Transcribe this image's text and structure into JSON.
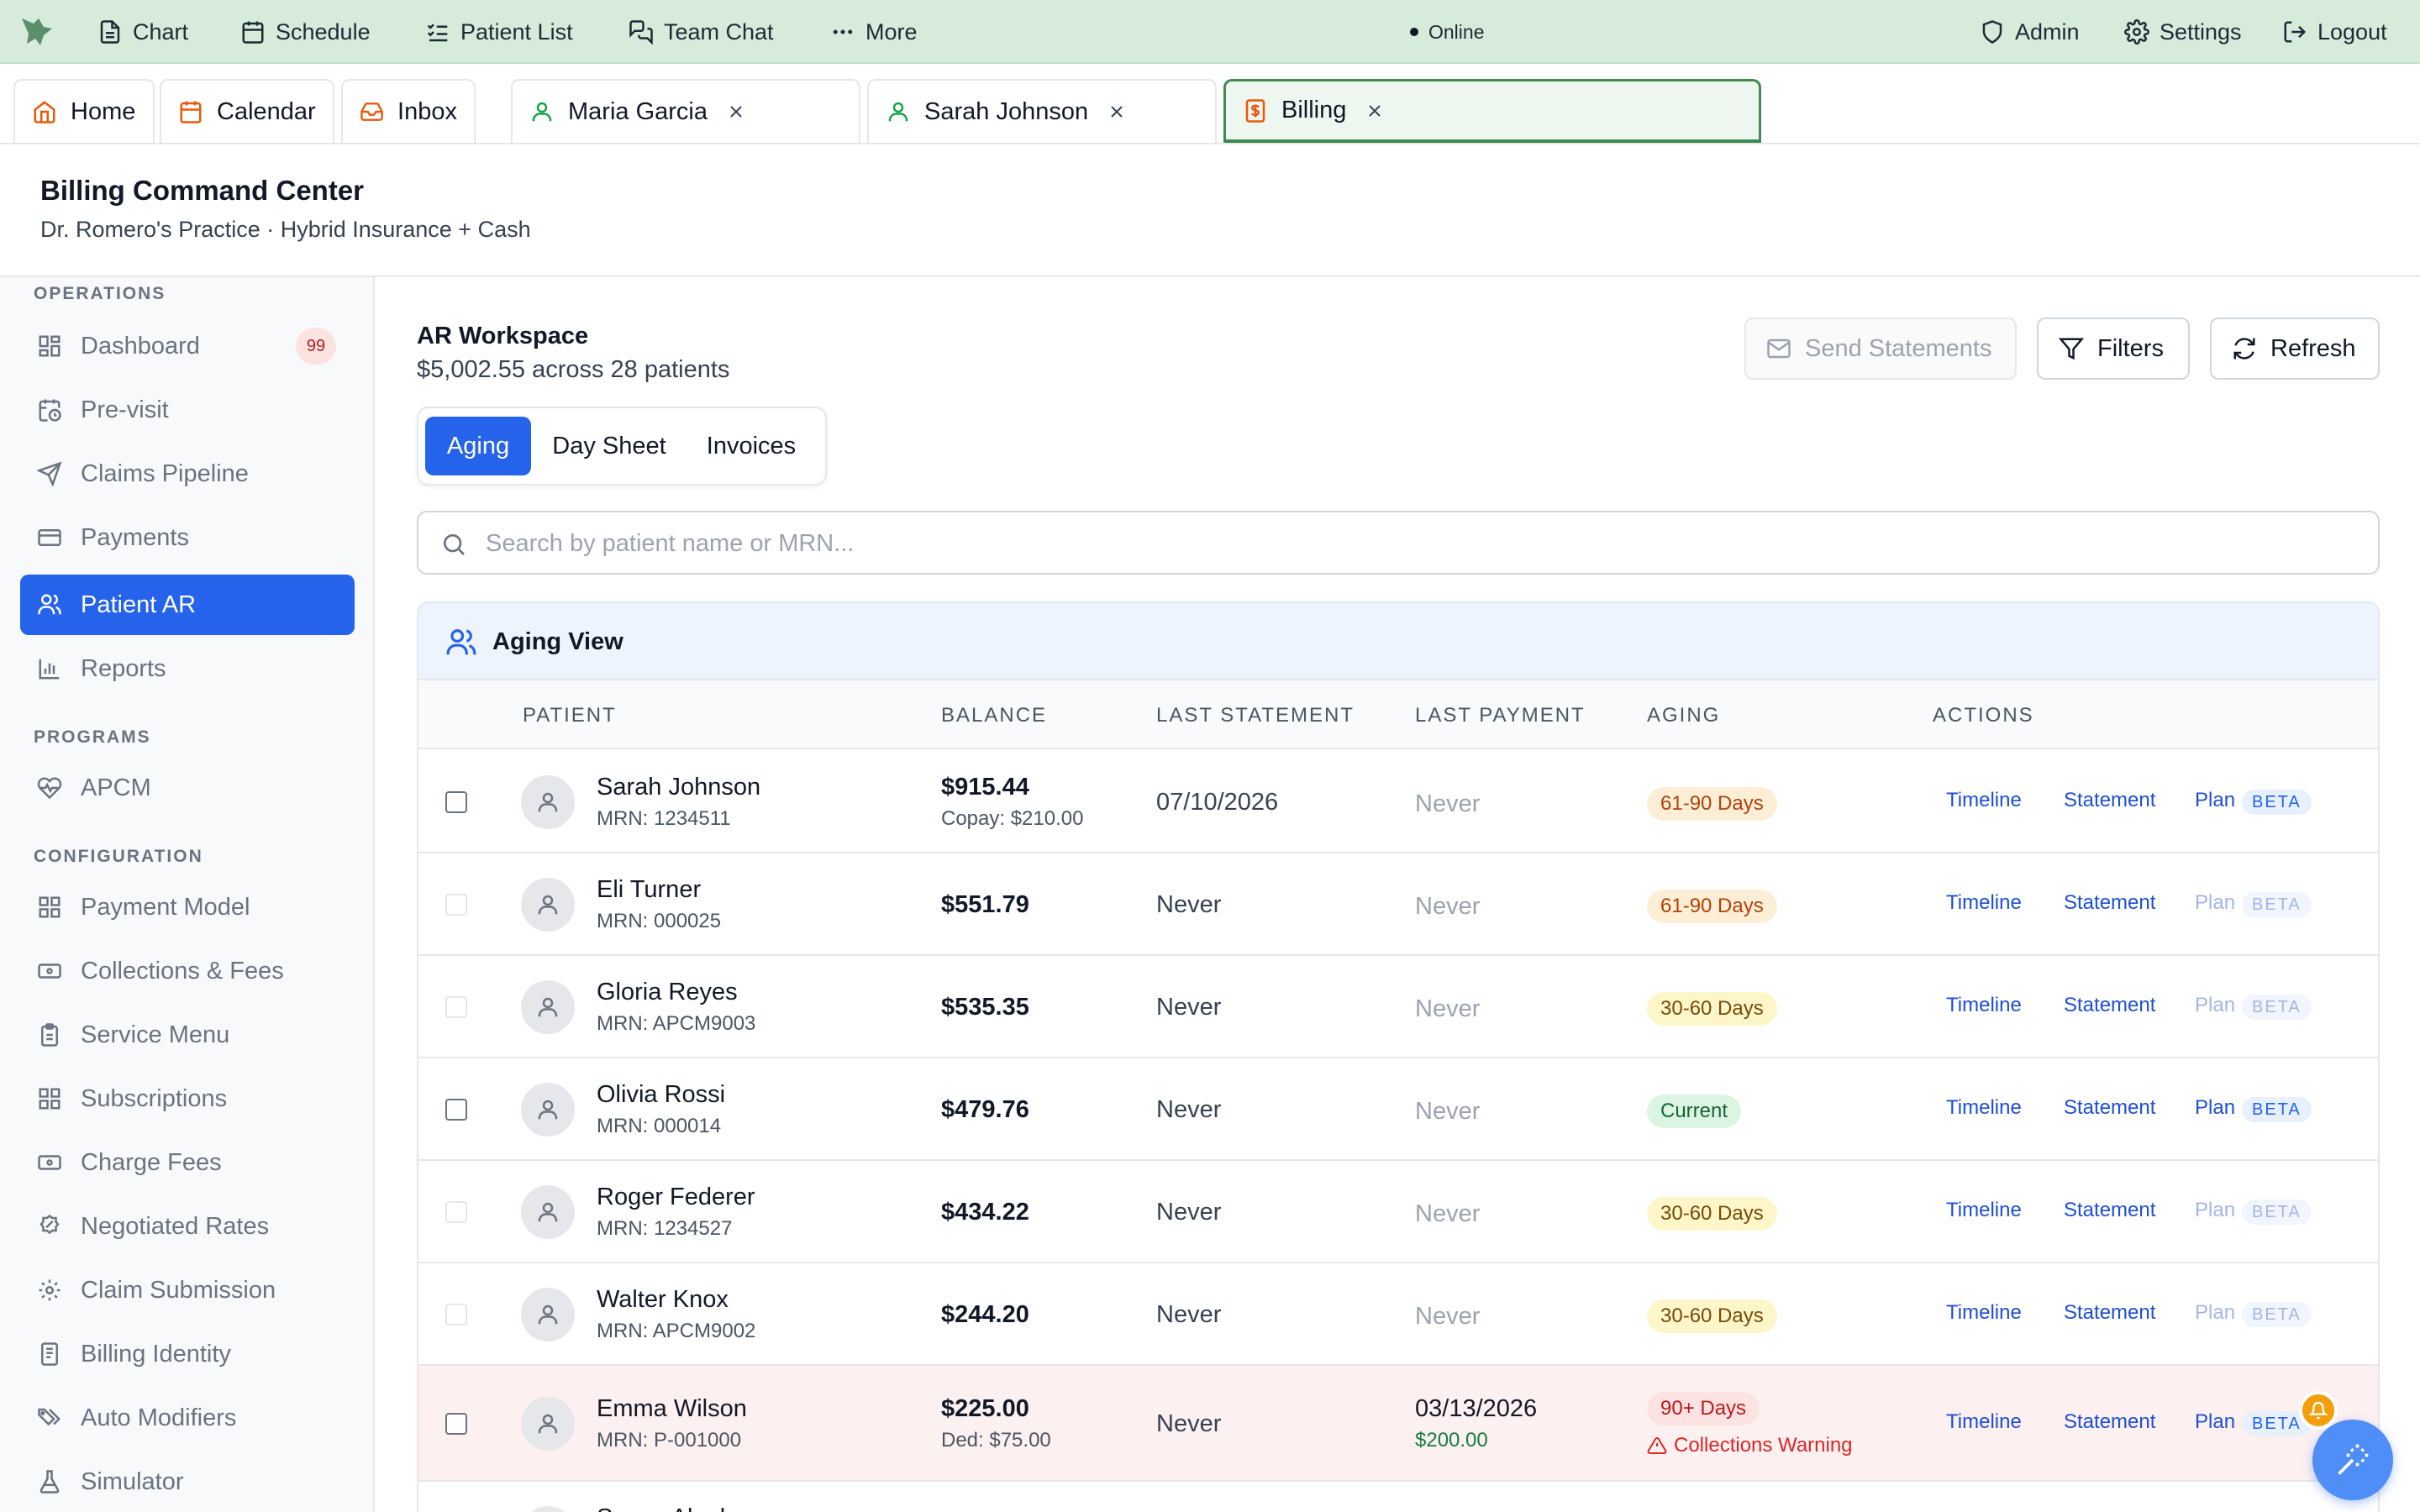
{
  "topnav": {
    "items": [
      {
        "label": "Chart",
        "icon": "document-icon"
      },
      {
        "label": "Schedule",
        "icon": "calendar-icon"
      },
      {
        "label": "Patient List",
        "icon": "list-check-icon"
      },
      {
        "label": "Team Chat",
        "icon": "chat-icon"
      },
      {
        "label": "More",
        "icon": "ellipsis-icon"
      }
    ],
    "status": "Online",
    "right": [
      {
        "label": "Admin",
        "icon": "shield-icon"
      },
      {
        "label": "Settings",
        "icon": "gear-icon"
      },
      {
        "label": "Logout",
        "icon": "logout-icon"
      }
    ]
  },
  "tabs": {
    "fixed": [
      {
        "label": "Home",
        "icon": "home-icon"
      },
      {
        "label": "Calendar",
        "icon": "calendar-icon"
      },
      {
        "label": "Inbox",
        "icon": "inbox-icon"
      }
    ],
    "open": [
      {
        "label": "Maria Garcia",
        "icon": "user-icon"
      },
      {
        "label": "Sarah Johnson",
        "icon": "user-icon"
      },
      {
        "label": "Billing",
        "icon": "billing-icon",
        "active": true
      }
    ]
  },
  "header": {
    "title": "Billing Command Center",
    "subtitle": "Dr. Romero's Practice · Hybrid Insurance + Cash"
  },
  "sidebar": {
    "sections": [
      {
        "title": "OPERATIONS",
        "items": [
          {
            "label": "Dashboard",
            "icon": "dashboard-icon",
            "badge": "99"
          },
          {
            "label": "Pre-visit",
            "icon": "calendar-clock-icon"
          },
          {
            "label": "Claims Pipeline",
            "icon": "send-icon"
          },
          {
            "label": "Payments",
            "icon": "credit-card-icon"
          },
          {
            "label": "Patient AR",
            "icon": "users-icon",
            "active": true
          },
          {
            "label": "Reports",
            "icon": "bar-chart-icon"
          }
        ]
      },
      {
        "title": "PROGRAMS",
        "items": [
          {
            "label": "APCM",
            "icon": "heart-pulse-icon"
          }
        ]
      },
      {
        "title": "CONFIGURATION",
        "items": [
          {
            "label": "Payment Model",
            "icon": "blocks-icon"
          },
          {
            "label": "Collections & Fees",
            "icon": "banknote-icon"
          },
          {
            "label": "Service Menu",
            "icon": "clipboard-icon"
          },
          {
            "label": "Subscriptions",
            "icon": "blocks-icon"
          },
          {
            "label": "Charge Fees",
            "icon": "banknote-icon"
          },
          {
            "label": "Negotiated Rates",
            "icon": "badge-percent-icon"
          },
          {
            "label": "Claim Submission",
            "icon": "gear-icon"
          },
          {
            "label": "Billing Identity",
            "icon": "id-document-icon"
          },
          {
            "label": "Auto Modifiers",
            "icon": "tags-icon"
          },
          {
            "label": "Simulator",
            "icon": "flask-icon"
          }
        ]
      }
    ]
  },
  "workspace": {
    "title": "AR Workspace",
    "summary": "$5,002.55 across 28 patients",
    "buttons": {
      "send": "Send Statements",
      "filters": "Filters",
      "refresh": "Refresh"
    },
    "tabs": [
      "Aging",
      "Day Sheet",
      "Invoices"
    ],
    "active_tab": "Aging",
    "search_placeholder": "Search by patient name or MRN..."
  },
  "aging": {
    "title": "Aging View",
    "columns": [
      "PATIENT",
      "BALANCE",
      "LAST STATEMENT",
      "LAST PAYMENT",
      "AGING",
      "ACTIONS"
    ],
    "rows": [
      {
        "name": "Sarah Johnson",
        "mrn": "MRN: 1234511",
        "balance": "$915.44",
        "balance_sub": "Copay: $210.00",
        "last_statement": "07/10/2026",
        "last_payment": "Never",
        "payment_sub": "",
        "aging": "61-90 Days",
        "aging_tone": "amber",
        "warning": "",
        "plan_enabled": true,
        "checkbox_enabled": true
      },
      {
        "name": "Eli Turner",
        "mrn": "MRN: 000025",
        "balance": "$551.79",
        "balance_sub": "",
        "last_statement": "Never",
        "last_payment": "Never",
        "payment_sub": "",
        "aging": "61-90 Days",
        "aging_tone": "amber",
        "warning": "",
        "plan_enabled": false,
        "checkbox_enabled": false
      },
      {
        "name": "Gloria Reyes",
        "mrn": "MRN: APCM9003",
        "balance": "$535.35",
        "balance_sub": "",
        "last_statement": "Never",
        "last_payment": "Never",
        "payment_sub": "",
        "aging": "30-60 Days",
        "aging_tone": "yellow",
        "warning": "",
        "plan_enabled": false,
        "checkbox_enabled": false
      },
      {
        "name": "Olivia Rossi",
        "mrn": "MRN: 000014",
        "balance": "$479.76",
        "balance_sub": "",
        "last_statement": "Never",
        "last_payment": "Never",
        "payment_sub": "",
        "aging": "Current",
        "aging_tone": "green",
        "warning": "",
        "plan_enabled": true,
        "checkbox_enabled": true
      },
      {
        "name": "Roger Federer",
        "mrn": "MRN: 1234527",
        "balance": "$434.22",
        "balance_sub": "",
        "last_statement": "Never",
        "last_payment": "Never",
        "payment_sub": "",
        "aging": "30-60 Days",
        "aging_tone": "yellow",
        "warning": "",
        "plan_enabled": false,
        "checkbox_enabled": false
      },
      {
        "name": "Walter Knox",
        "mrn": "MRN: APCM9002",
        "balance": "$244.20",
        "balance_sub": "",
        "last_statement": "Never",
        "last_payment": "Never",
        "payment_sub": "",
        "aging": "30-60 Days",
        "aging_tone": "yellow",
        "warning": "",
        "plan_enabled": false,
        "checkbox_enabled": false
      },
      {
        "name": "Emma Wilson",
        "mrn": "MRN: P-001000",
        "balance": "$225.00",
        "balance_sub": "Ded: $75.00",
        "last_statement": "Never",
        "last_payment": "03/13/2026",
        "payment_sub": "$200.00",
        "aging": "90+ Days",
        "aging_tone": "red",
        "warning": "Collections Warning",
        "plan_enabled": true,
        "checkbox_enabled": true
      },
      {
        "name": "Susan Alonk",
        "mrn": "",
        "balance": "",
        "balance_sub": "",
        "last_statement": "",
        "last_payment": "",
        "payment_sub": "",
        "aging": "",
        "aging_tone": "",
        "warning": "",
        "plan_enabled": false,
        "checkbox_enabled": false
      }
    ],
    "actions": {
      "timeline": "Timeline",
      "statement": "Statement",
      "plan": "Plan",
      "beta": "BETA"
    }
  },
  "colors": {
    "accent": "#2563eb",
    "nav_bg": "#d6ebd9",
    "active_tab_border": "#3f8a4f",
    "fab": "#4f8ef7",
    "notification": "#f59e0b"
  }
}
